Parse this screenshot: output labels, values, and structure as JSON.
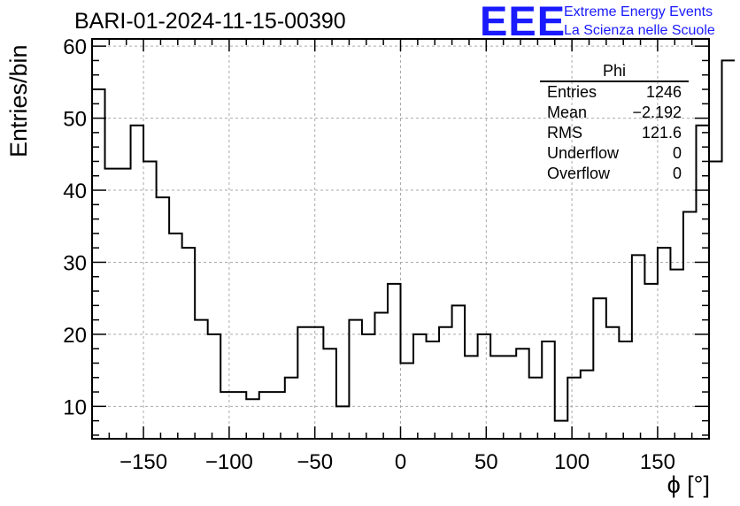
{
  "title": "BARI-01-2024-11-15-00390",
  "logo": {
    "mark": "EEE",
    "line1": "Extreme Energy Events",
    "line2": "La Scienza nelle Scuole"
  },
  "stats": {
    "name": "Phi",
    "rows": [
      {
        "label": "Entries",
        "value": "1246"
      },
      {
        "label": "Mean",
        "value": "−2.192"
      },
      {
        "label": "RMS",
        "value": "121.6"
      },
      {
        "label": "Underflow",
        "value": "0"
      },
      {
        "label": "Overflow",
        "value": "0"
      }
    ]
  },
  "chart_data": {
    "type": "bar",
    "histogram": "step",
    "title": "BARI-01-2024-11-15-00390",
    "xlabel": "ϕ [°]",
    "ylabel": "Entries/bin",
    "xlim": [
      -180,
      180
    ],
    "ylim": [
      5.5,
      61
    ],
    "xticks": [
      -150,
      -100,
      -50,
      0,
      50,
      100,
      150
    ],
    "xtick_labels": [
      "−150",
      "−100",
      "−50",
      "0",
      "50",
      "100",
      "150"
    ],
    "yticks": [
      10,
      20,
      30,
      40,
      50,
      60
    ],
    "grid": true,
    "bin_width": 7.5,
    "bin_edges_start": -180,
    "values": [
      54,
      43,
      43,
      49,
      44,
      39,
      34,
      32,
      22,
      20,
      12,
      12,
      11,
      12,
      12,
      14,
      21,
      21,
      18,
      10,
      22,
      20,
      23,
      27,
      16,
      20,
      19,
      21,
      24,
      17,
      20,
      17,
      17,
      18,
      14,
      19,
      8,
      14,
      15,
      25,
      21,
      19,
      31,
      27,
      32,
      29,
      37,
      49,
      44,
      58
    ]
  }
}
